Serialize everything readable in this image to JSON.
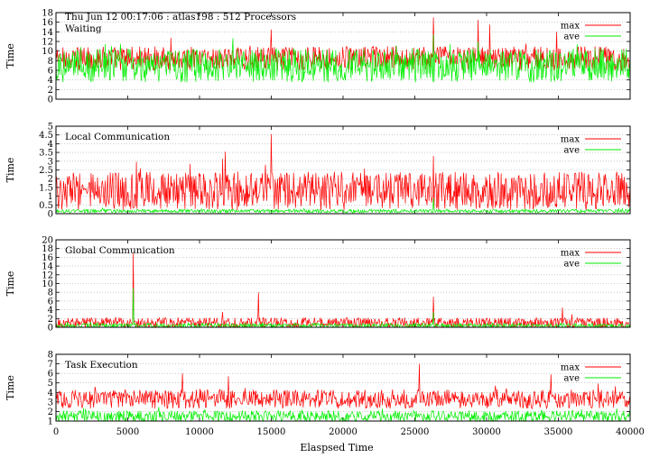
{
  "figure": {
    "header": "Thu Jun 12 00:17:06 : atlas198 : 512 Processors",
    "xlabel": "Elaspsed Time",
    "xlim": [
      0,
      40000
    ],
    "xticks": [
      0,
      5000,
      10000,
      15000,
      20000,
      25000,
      30000,
      35000,
      40000
    ]
  },
  "colors": {
    "max": "#ff0000",
    "ave": "#00ee00",
    "axis": "#000000",
    "grid": "#aaaaaa"
  },
  "chart_data": [
    {
      "type": "line",
      "title": "Waiting",
      "ylabel": "Time",
      "ylim": [
        0,
        18
      ],
      "yticks": [
        0,
        2,
        4,
        6,
        8,
        10,
        12,
        14,
        16,
        18
      ],
      "grid": "horizontal dotted",
      "legend": "top-right",
      "series": [
        {
          "name": "max",
          "color": "#ff0000",
          "base": 8.5,
          "spread": 2.5,
          "spikes": [
            [
              26300,
              17.0
            ],
            [
              29400,
              16.5
            ],
            [
              30200,
              15.5
            ],
            [
              15000,
              14.5
            ],
            [
              34900,
              14.0
            ]
          ]
        },
        {
          "name": "ave",
          "color": "#00ee00",
          "base": 7.0,
          "spread": 3.5,
          "spikes": [
            [
              26300,
              13.5
            ],
            [
              4500,
              11.5
            ],
            [
              29400,
              12.0
            ]
          ]
        }
      ]
    },
    {
      "type": "line",
      "title": "Local Communication",
      "ylabel": "Time",
      "ylim": [
        0,
        5
      ],
      "yticks": [
        0,
        0.5,
        1,
        1.5,
        2,
        2.5,
        3,
        3.5,
        4,
        4.5,
        5
      ],
      "grid": "horizontal dotted",
      "legend": "top-right",
      "series": [
        {
          "name": "max",
          "color": "#ff0000",
          "base": 1.3,
          "spread": 1.1,
          "spikes": [
            [
              15000,
              4.55
            ],
            [
              11800,
              3.55
            ],
            [
              26300,
              3.3
            ],
            [
              14600,
              2.8
            ]
          ]
        },
        {
          "name": "ave",
          "color": "#00ee00",
          "base": 0.15,
          "spread": 0.1,
          "spikes": [
            [
              26300,
              0.9
            ]
          ]
        }
      ]
    },
    {
      "type": "line",
      "title": "Global Communication",
      "ylabel": "Time",
      "ylim": [
        0,
        20
      ],
      "yticks": [
        0,
        2,
        4,
        6,
        8,
        10,
        12,
        14,
        16,
        18,
        20
      ],
      "grid": "horizontal dotted",
      "legend": "top-right",
      "series": [
        {
          "name": "max",
          "color": "#ff0000",
          "base": 1.0,
          "spread": 1.2,
          "spikes": [
            [
              5400,
              17.0
            ],
            [
              14100,
              8.0
            ],
            [
              26300,
              7.0
            ],
            [
              35300,
              4.5
            ],
            [
              11600,
              3.5
            ]
          ]
        },
        {
          "name": "ave",
          "color": "#00ee00",
          "base": 0.4,
          "spread": 0.5,
          "spikes": [
            [
              5400,
              9.0
            ],
            [
              26300,
              3.5
            ]
          ]
        }
      ]
    },
    {
      "type": "line",
      "title": "Task Execution",
      "ylabel": "Time",
      "ylim": [
        1,
        8
      ],
      "yticks": [
        1,
        2,
        3,
        4,
        5,
        6,
        7,
        8
      ],
      "grid": "horizontal dotted",
      "legend": "top-right",
      "series": [
        {
          "name": "max",
          "color": "#ff0000",
          "base": 3.3,
          "spread": 1.0,
          "spikes": [
            [
              25300,
              7.0
            ],
            [
              8800,
              6.0
            ],
            [
              34500,
              5.9
            ],
            [
              12000,
              5.7
            ]
          ]
        },
        {
          "name": "ave",
          "color": "#00ee00",
          "base": 1.5,
          "spread": 0.6,
          "spikes": []
        }
      ]
    }
  ]
}
